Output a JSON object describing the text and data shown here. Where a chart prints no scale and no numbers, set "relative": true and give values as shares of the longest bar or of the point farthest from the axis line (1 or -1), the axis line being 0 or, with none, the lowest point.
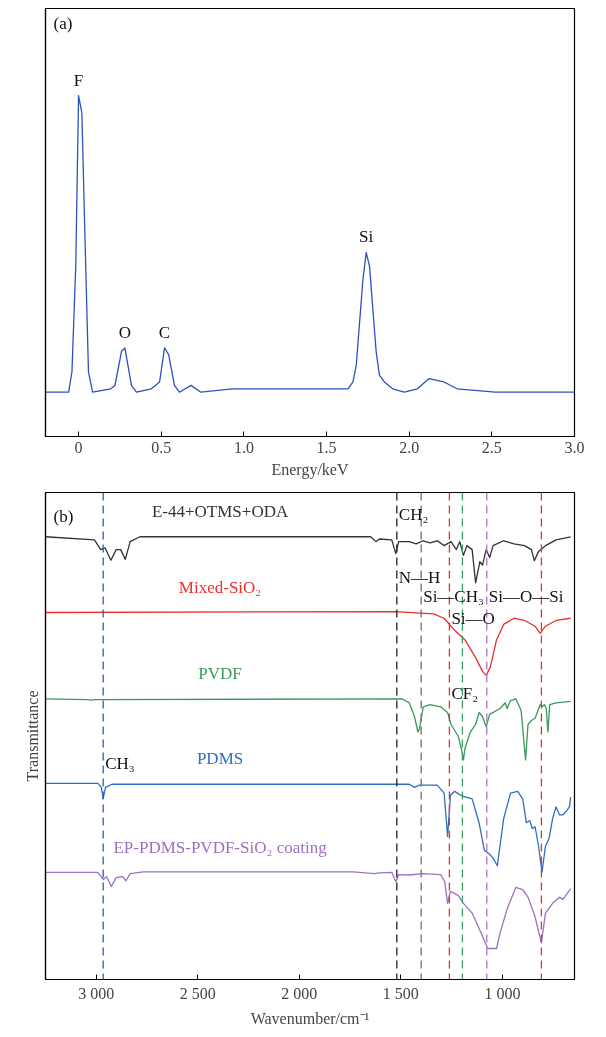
{
  "chart_data": [
    {
      "type": "line",
      "relative": true,
      "xlabel": "Energy/keV",
      "xlim": [
        -0.2,
        3.0
      ],
      "xticks": [
        0,
        0.5,
        {
          "value": 1,
          "label": "1.0"
        },
        1.5,
        {
          "value": 2,
          "label": "2.0"
        },
        2.5,
        {
          "value": 3,
          "label": "3.0"
        }
      ],
      "tick_labels": "x",
      "series": [
        {
          "color": "#2a52be",
          "x": [
            -0.197,
            -0.06,
            -0.04,
            -0.017,
            0,
            0.02,
            0.04,
            0.06,
            0.085,
            0.195,
            0.22,
            0.26,
            0.28,
            0.32,
            0.35,
            0.44,
            0.465,
            0.49,
            0.52,
            0.545,
            0.58,
            0.61,
            0.68,
            0.74,
            0.93,
            1.14,
            1.63,
            1.66,
            1.68,
            1.72,
            1.74,
            1.76,
            1.8,
            1.82,
            1.85,
            1.9,
            1.97,
            2.05,
            2.12,
            2.21,
            2.29,
            2.52,
            3.0
          ],
          "values": [
            0.13,
            0.13,
            0.19,
            0.5,
            1,
            0.95,
            0.56,
            0.19,
            0.13,
            0.14,
            0.15,
            0.25,
            0.26,
            0.15,
            0.13,
            0.14,
            0.15,
            0.16,
            0.26,
            0.24,
            0.15,
            0.13,
            0.15,
            0.13,
            0.14,
            0.14,
            0.14,
            0.16,
            0.21,
            0.46,
            0.54,
            0.5,
            0.25,
            0.18,
            0.16,
            0.14,
            0.13,
            0.14,
            0.17,
            0.16,
            0.14,
            0.13,
            0.13
          ]
        }
      ],
      "annotations": [
        "(a)",
        {
          "text": "F",
          "x": 0,
          "y": 1
        },
        {
          "text": "O",
          "x": 0.28,
          "y": 0.26
        },
        {
          "text": "C",
          "x": 0.52,
          "y": 0.26
        },
        {
          "text": "Si",
          "x": 1.74,
          "y": 0.54
        }
      ]
    },
    {
      "type": "line",
      "relative": true,
      "xlabel": "Wavenumber/cm⁻¹",
      "ylabel": "Transmittance",
      "xlim": [
        3250,
        645
      ],
      "xticks": [
        {
          "value": 3000,
          "label": "3 000"
        },
        {
          "value": 2500,
          "label": "2 500"
        },
        {
          "value": 2000,
          "label": "2 000"
        },
        {
          "value": 1500,
          "label": "1 500"
        },
        {
          "value": 1000,
          "label": "1 000"
        }
      ],
      "tick_labels": "x",
      "series": [
        {
          "name": "E-44+OTMS+ODA",
          "color": "#333333",
          "x": [
            3250,
            3009,
            2978,
            2957,
            2928,
            2902,
            2880,
            2857,
            2833,
            2785,
            1649,
            1623,
            1606,
            1545,
            1525,
            1511,
            1459,
            1425,
            1390,
            1356,
            1321,
            1287,
            1253,
            1227,
            1210,
            1192,
            1175,
            1149,
            1132,
            1111,
            1098,
            1080,
            1063,
            1046,
            994,
            943,
            891,
            857,
            843,
            822,
            788,
            736,
            664
          ],
          "values": [
            1,
            0.993,
            0.971,
            0.975,
            0.947,
            0.971,
            0.971,
            0.949,
            0.989,
            1,
            1,
            0.989,
            0.995,
            0.993,
            0.962,
            0.989,
            0.989,
            0.984,
            0.991,
            0.986,
            0.991,
            0.98,
            0.989,
            0.971,
            0.989,
            0.958,
            0.98,
            0.971,
            0.896,
            0.944,
            0.936,
            0.971,
            0.953,
            0.98,
            0.991,
            0.984,
            0.98,
            0.971,
            0.946,
            0.967,
            0.98,
            0.993,
            1
          ]
        },
        {
          "name": "Mixed-SiO₂",
          "color": "#e8302e",
          "x": [
            3250,
            1528,
            1339,
            1287,
            1244,
            1184,
            1132,
            1098,
            1080,
            1060,
            1029,
            994,
            943,
            891,
            839,
            814,
            788,
            736,
            664
          ],
          "values": [
            0.829,
            0.831,
            0.826,
            0.816,
            0.793,
            0.767,
            0.727,
            0.696,
            0.687,
            0.705,
            0.767,
            0.802,
            0.816,
            0.811,
            0.798,
            0.782,
            0.798,
            0.811,
            0.816
          ]
        },
        {
          "name": "PVDF",
          "color": "#3a9a5a",
          "x": [
            3250,
            3043,
            3026,
            3009,
            1494,
            1459,
            1433,
            1416,
            1408,
            1390,
            1356,
            1304,
            1270,
            1253,
            1218,
            1201,
            1192,
            1184,
            1158,
            1132,
            1115,
            1098,
            1080,
            1063,
            1011,
            986,
            977,
            960,
            934,
            908,
            886,
            874,
            857,
            839,
            814,
            805,
            793,
            784,
            776,
            767,
            736,
            664
          ],
          "values": [
            0.634,
            0.632,
            0.631,
            0.632,
            0.634,
            0.625,
            0.594,
            0.559,
            0.567,
            0.616,
            0.621,
            0.616,
            0.603,
            0.576,
            0.55,
            0.519,
            0.496,
            0.523,
            0.559,
            0.576,
            0.603,
            0.594,
            0.571,
            0.599,
            0.612,
            0.625,
            0.612,
            0.63,
            0.634,
            0.608,
            0.496,
            0.576,
            0.585,
            0.59,
            0.621,
            0.616,
            0.621,
            0.612,
            0.559,
            0.621,
            0.625,
            0.628
          ]
        },
        {
          "name": "PDMS",
          "color": "#2e6fc0",
          "x": [
            3250,
            2992,
            2975,
            2966,
            2954,
            2923,
            1563,
            1459,
            1433,
            1408,
            1321,
            1287,
            1270,
            1256,
            1235,
            1201,
            1149,
            1115,
            1089,
            1063,
            1046,
            1025,
            994,
            960,
            925,
            900,
            882,
            865,
            853,
            839,
            822,
            805,
            788,
            770,
            753,
            736,
            719,
            702,
            684,
            670,
            664
          ],
          "values": [
            0.443,
            0.443,
            0.434,
            0.409,
            0.434,
            0.441,
            0.441,
            0.441,
            0.434,
            0.439,
            0.439,
            0.421,
            0.323,
            0.416,
            0.425,
            0.415,
            0.408,
            0.354,
            0.292,
            0.283,
            0.274,
            0.257,
            0.363,
            0.421,
            0.425,
            0.408,
            0.354,
            0.359,
            0.341,
            0.345,
            0.301,
            0.243,
            0.301,
            0.319,
            0.363,
            0.39,
            0.372,
            0.372,
            0.381,
            0.39,
            0.412
          ]
        },
        {
          "name": "EP-PDMS-PVDF-SiO₂ coating",
          "color": "#9b72c0",
          "x": [
            3250,
            2992,
            2966,
            2949,
            2926,
            2902,
            2871,
            2854,
            2833,
            2768,
            1735,
            1631,
            1606,
            1545,
            1525,
            1511,
            1459,
            1390,
            1304,
            1284,
            1270,
            1256,
            1218,
            1192,
            1149,
            1106,
            1072,
            1029,
            1011,
            977,
            934,
            900,
            874,
            839,
            808,
            788,
            753,
            719,
            702,
            664
          ],
          "values": [
            0.242,
            0.242,
            0.226,
            0.232,
            0.21,
            0.23,
            0.233,
            0.223,
            0.239,
            0.243,
            0.243,
            0.239,
            0.241,
            0.242,
            0.221,
            0.237,
            0.236,
            0.239,
            0.237,
            0.221,
            0.172,
            0.199,
            0.19,
            0.172,
            0.15,
            0.106,
            0.07,
            0.07,
            0.106,
            0.159,
            0.208,
            0.203,
            0.186,
            0.141,
            0.083,
            0.15,
            0.172,
            0.186,
            0.181,
            0.205
          ]
        }
      ],
      "ref_lines": [
        {
          "axis": "x",
          "value": 2966,
          "color": "#2a5cbf",
          "line_style": "dashed"
        },
        {
          "axis": "x",
          "value": 1520,
          "color": "#222222",
          "line_style": "dashed"
        },
        {
          "axis": "x",
          "value": 1400,
          "color": "#8b6464",
          "line_style": "dashed"
        },
        {
          "axis": "x",
          "value": 1261,
          "color": "#e83030",
          "line_style": "dashed"
        },
        {
          "axis": "x",
          "value": 1197,
          "color": "#3aa060",
          "line_style": "dashed"
        },
        {
          "axis": "x",
          "value": 1077,
          "color": "#b070d0",
          "line_style": "dashed"
        },
        {
          "axis": "x",
          "value": 808,
          "color": "#e83030",
          "line_style": "dashed"
        }
      ],
      "annotations": [
        "(b)",
        {
          "text": "CH₂",
          "x": 1520,
          "y": 1.05
        },
        {
          "text": "N—H",
          "x": 1520,
          "y": 0.909
        },
        {
          "text": "Si—CH₃",
          "x": 1400,
          "y": 0.864
        },
        {
          "text": "Si—O—Si",
          "x": 1077,
          "y": 0.864
        },
        {
          "text": "Si—O",
          "x": 1261,
          "y": 0.816
        },
        {
          "text": "CF₂",
          "x": 1261,
          "y": 0.645
        },
        {
          "text": "CH₃",
          "x": 2966,
          "y": 0.487
        }
      ]
    }
  ]
}
